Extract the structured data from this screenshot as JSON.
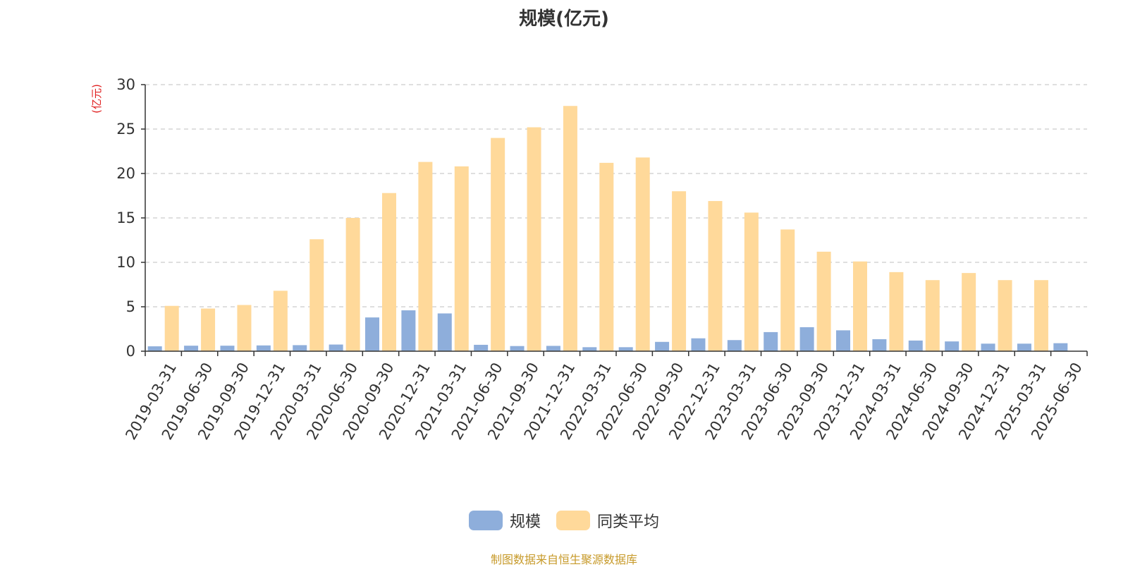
{
  "chart_data": {
    "type": "bar",
    "title": "规模(亿元)",
    "ylabel": "(亿元)",
    "xlabel": "",
    "ylim": [
      0,
      30
    ],
    "yticks": [
      0,
      5,
      10,
      15,
      20,
      25,
      30
    ],
    "grid": true,
    "legend_position": "bottom-center",
    "categories": [
      "2019-03-31",
      "2019-06-30",
      "2019-09-30",
      "2019-12-31",
      "2020-03-31",
      "2020-06-30",
      "2020-09-30",
      "2020-12-31",
      "2021-03-31",
      "2021-06-30",
      "2021-09-30",
      "2021-12-31",
      "2022-03-31",
      "2022-06-30",
      "2022-09-30",
      "2022-12-31",
      "2023-03-31",
      "2023-06-30",
      "2023-09-30",
      "2023-12-31",
      "2024-03-31",
      "2024-06-30",
      "2024-09-30",
      "2024-12-31",
      "2025-03-31",
      "2025-06-30"
    ],
    "series": [
      {
        "name": "规模",
        "color": "#8eaedb",
        "values": [
          0.55,
          0.62,
          0.62,
          0.65,
          0.68,
          0.75,
          3.8,
          4.6,
          4.25,
          0.72,
          0.58,
          0.6,
          0.45,
          0.45,
          1.05,
          1.45,
          1.25,
          2.15,
          2.7,
          2.35,
          1.35,
          1.2,
          1.1,
          0.85,
          0.85,
          0.9
        ]
      },
      {
        "name": "同类平均",
        "color": "#ffd99a",
        "values": [
          5.1,
          4.8,
          5.2,
          6.8,
          12.6,
          15.0,
          17.8,
          21.3,
          20.8,
          24.0,
          25.2,
          27.6,
          21.2,
          21.8,
          18.0,
          16.9,
          15.6,
          13.7,
          11.2,
          10.1,
          8.9,
          8.0,
          8.8,
          8.0,
          8.0,
          null
        ]
      }
    ]
  },
  "legend": [
    {
      "label": "规模",
      "color": "#8eaedb"
    },
    {
      "label": "同类平均",
      "color": "#ffd99a"
    }
  ],
  "source_note": "制图数据来自恒生聚源数据库"
}
